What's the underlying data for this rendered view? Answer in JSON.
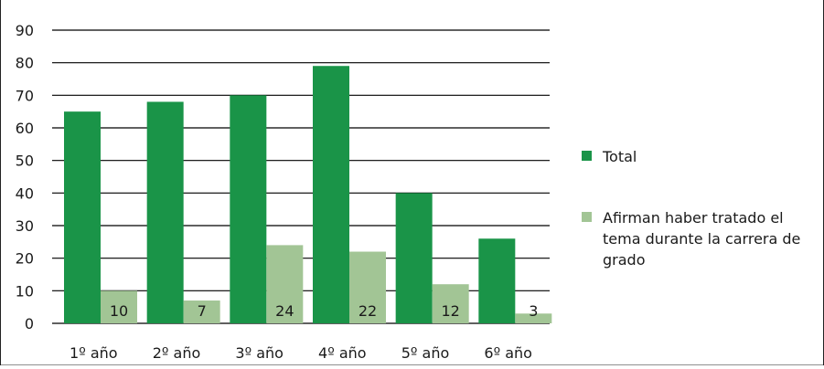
{
  "chart_data": {
    "type": "bar",
    "categories": [
      "1º año",
      "2º año",
      "3º año",
      "4º año",
      "5º año",
      "6º año"
    ],
    "series": [
      {
        "name": "Total",
        "values": [
          65,
          68,
          70,
          79,
          40,
          26
        ],
        "color": "#1a9448"
      },
      {
        "name": "Afirman haber tratado el tema durante la carrera de grado",
        "values": [
          10,
          7,
          24,
          22,
          12,
          3
        ],
        "color": "#a2c595",
        "data_labels": [
          "10",
          "7",
          "24",
          "22",
          "12",
          "3"
        ]
      }
    ],
    "ylim": [
      0,
      90
    ],
    "yticks": [
      "0",
      "10",
      "20",
      "30",
      "40",
      "50",
      "60",
      "70",
      "80",
      "90"
    ],
    "grid": true,
    "legend_position": "right"
  }
}
